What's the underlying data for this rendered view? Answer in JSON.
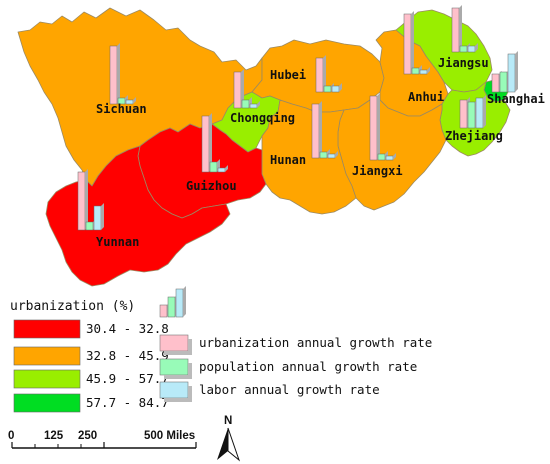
{
  "legend": {
    "title": "urbanization (%)",
    "classes": [
      {
        "label": "30.4 - 32.8",
        "color": "#ff0000"
      },
      {
        "label": "32.8 - 45.9",
        "color": "#ffa500"
      },
      {
        "label": "45.9 - 57.7",
        "color": "#99ee00"
      },
      {
        "label": "57.7 - 84.7",
        "color": "#00dd22"
      }
    ]
  },
  "bar_legend": [
    {
      "label": "urbanization annual growth rate",
      "color": "#ffc0cb"
    },
    {
      "label": "population annual growth rate",
      "color": "#98fbb8"
    },
    {
      "label": "labor annual growth rate",
      "color": "#b8eaf8"
    }
  ],
  "regions": [
    {
      "name": "Sichuan",
      "urban_class": 1
    },
    {
      "name": "Chongqing",
      "urban_class": 2
    },
    {
      "name": "Hubei",
      "urban_class": 1
    },
    {
      "name": "Hunan",
      "urban_class": 1
    },
    {
      "name": "Anhui",
      "urban_class": 1
    },
    {
      "name": "Jiangxi",
      "urban_class": 1
    },
    {
      "name": "Jiangsu",
      "urban_class": 2
    },
    {
      "name": "Shanghai",
      "urban_class": 3
    },
    {
      "name": "Zhejiang",
      "urban_class": 2
    },
    {
      "name": "Guizhou",
      "urban_class": 0
    },
    {
      "name": "Yunnan",
      "urban_class": 0
    }
  ],
  "scale_bar": {
    "ticks": [
      "0",
      "125",
      "250",
      "500 Miles"
    ]
  },
  "north_arrow": {
    "label": "N",
    "icon": "north-arrow-icon"
  }
}
